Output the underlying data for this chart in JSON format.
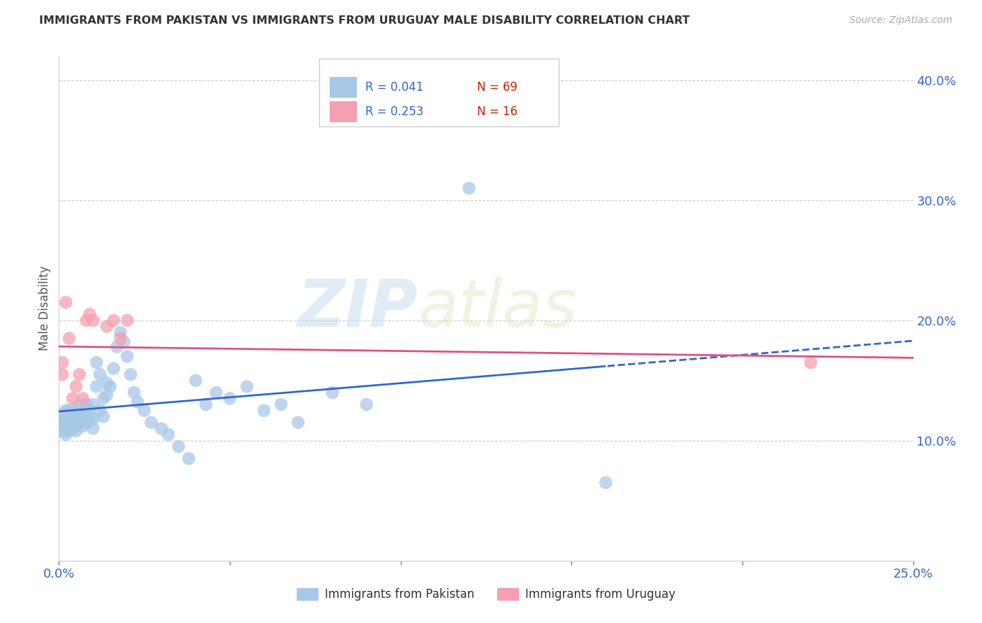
{
  "title": "IMMIGRANTS FROM PAKISTAN VS IMMIGRANTS FROM URUGUAY MALE DISABILITY CORRELATION CHART",
  "source": "Source: ZipAtlas.com",
  "ylabel": "Male Disability",
  "xlim": [
    0.0,
    0.25
  ],
  "ylim": [
    0.0,
    0.42
  ],
  "xtick_positions": [
    0.0,
    0.05,
    0.1,
    0.15,
    0.2,
    0.25
  ],
  "xticklabels": [
    "0.0%",
    "",
    "",
    "",
    "",
    "25.0%"
  ],
  "ytick_positions": [
    0.0,
    0.1,
    0.2,
    0.3,
    0.4
  ],
  "yticklabels": [
    "",
    "10.0%",
    "20.0%",
    "30.0%",
    "40.0%"
  ],
  "pakistan_R": 0.041,
  "pakistan_N": 69,
  "uruguay_R": 0.253,
  "uruguay_N": 16,
  "pakistan_color": "#a8c8e8",
  "uruguay_color": "#f4a0b0",
  "pakistan_line_color": "#3366cc",
  "uruguay_line_color": "#e05080",
  "pakistan_x": [
    0.001,
    0.001,
    0.001,
    0.001,
    0.002,
    0.002,
    0.002,
    0.002,
    0.002,
    0.003,
    0.003,
    0.003,
    0.003,
    0.004,
    0.004,
    0.004,
    0.005,
    0.005,
    0.005,
    0.005,
    0.006,
    0.006,
    0.006,
    0.007,
    0.007,
    0.007,
    0.008,
    0.008,
    0.008,
    0.009,
    0.009,
    0.01,
    0.01,
    0.01,
    0.011,
    0.011,
    0.012,
    0.012,
    0.013,
    0.013,
    0.014,
    0.014,
    0.015,
    0.016,
    0.017,
    0.018,
    0.019,
    0.02,
    0.021,
    0.022,
    0.023,
    0.025,
    0.027,
    0.03,
    0.032,
    0.035,
    0.038,
    0.04,
    0.043,
    0.046,
    0.05,
    0.055,
    0.06,
    0.065,
    0.07,
    0.08,
    0.09,
    0.12,
    0.16
  ],
  "pakistan_y": [
    0.118,
    0.112,
    0.108,
    0.122,
    0.115,
    0.11,
    0.12,
    0.105,
    0.125,
    0.118,
    0.112,
    0.125,
    0.108,
    0.115,
    0.122,
    0.11,
    0.118,
    0.112,
    0.125,
    0.108,
    0.12,
    0.115,
    0.13,
    0.118,
    0.112,
    0.125,
    0.13,
    0.12,
    0.115,
    0.125,
    0.118,
    0.13,
    0.118,
    0.11,
    0.145,
    0.165,
    0.155,
    0.125,
    0.135,
    0.12,
    0.148,
    0.138,
    0.145,
    0.16,
    0.178,
    0.19,
    0.182,
    0.17,
    0.155,
    0.14,
    0.132,
    0.125,
    0.115,
    0.11,
    0.105,
    0.095,
    0.085,
    0.15,
    0.13,
    0.14,
    0.135,
    0.145,
    0.125,
    0.13,
    0.115,
    0.14,
    0.13,
    0.31,
    0.065
  ],
  "uruguay_x": [
    0.001,
    0.001,
    0.002,
    0.003,
    0.004,
    0.005,
    0.006,
    0.007,
    0.008,
    0.009,
    0.01,
    0.014,
    0.016,
    0.018,
    0.02,
    0.22
  ],
  "uruguay_y": [
    0.155,
    0.165,
    0.215,
    0.185,
    0.135,
    0.145,
    0.155,
    0.135,
    0.2,
    0.205,
    0.2,
    0.195,
    0.2,
    0.185,
    0.2,
    0.165
  ],
  "watermark_line1": "ZIP",
  "watermark_line2": "atlas",
  "legend_label_pakistan": "Immigrants from Pakistan",
  "legend_label_uruguay": "Immigrants from Uruguay",
  "background_color": "#ffffff",
  "grid_color": "#cccccc"
}
